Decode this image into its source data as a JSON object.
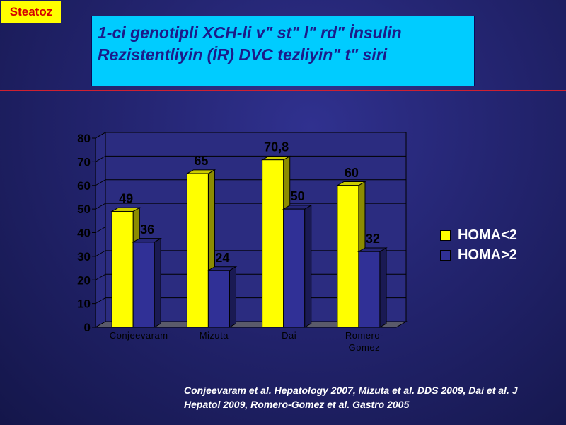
{
  "tag": {
    "label": "Steatoz"
  },
  "title": {
    "line1": "1-ci genotipli XCH-li v\" st\" l\" rd\"  İnsulin",
    "line2": "Rezistentliyin (İR) DVC tezliyin\"  t\" siri"
  },
  "colors": {
    "series_low": "#ffff00",
    "series_high": "#303096",
    "title_box": "#00ccff",
    "title_text": "#1b1b8a",
    "rule": "#d02030",
    "tag_bg": "#ffff00",
    "tag_text": "#d40000"
  },
  "chart_data": {
    "type": "bar",
    "style": "3d-clustered",
    "categories": [
      "Conjeevaram",
      "Mizuta",
      "Dai",
      "Romero-Gomez"
    ],
    "category_labels": [
      [
        "Conjeevaram"
      ],
      [
        "Mizuta"
      ],
      [
        "Dai"
      ],
      [
        "Romero-",
        "Gomez"
      ]
    ],
    "series": [
      {
        "name": "HOMA<2",
        "values": [
          49,
          65,
          70.8,
          60
        ],
        "labels": [
          "49",
          "65",
          "70,8",
          "60"
        ],
        "color": "#ffff00"
      },
      {
        "name": "HOMA>2",
        "values": [
          36,
          24,
          50,
          32
        ],
        "labels": [
          "36",
          "24",
          "50",
          "32"
        ],
        "color": "#303096"
      }
    ],
    "ylim": [
      0,
      80
    ],
    "yticks": [
      0,
      10,
      20,
      30,
      40,
      50,
      60,
      70,
      80
    ],
    "grid": true,
    "legend": "right"
  },
  "citation": {
    "line1": "Conjeevaram et al. Hepatology 2007, Mizuta et al. DDS 2009, Dai et al. J",
    "line2": "Hepatol 2009, Romero-Gomez et al. Gastro 2005"
  }
}
